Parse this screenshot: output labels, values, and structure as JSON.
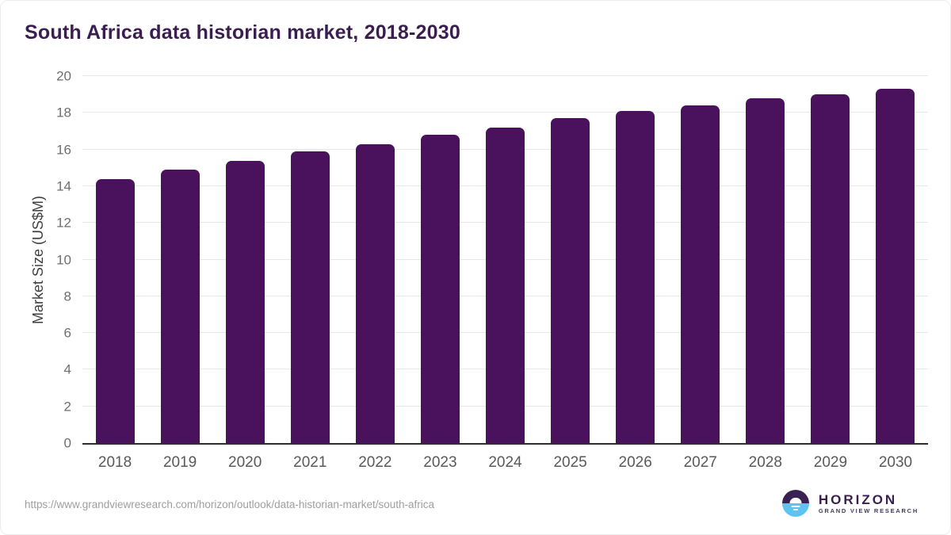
{
  "page": {
    "title": "South Africa data historian market, 2018-2030"
  },
  "chart_data": {
    "type": "bar",
    "title": "South Africa data historian market, 2018-2030",
    "categories": [
      "2018",
      "2019",
      "2020",
      "2021",
      "2022",
      "2023",
      "2024",
      "2025",
      "2026",
      "2027",
      "2028",
      "2029",
      "2030"
    ],
    "values": [
      14.4,
      14.9,
      15.4,
      15.9,
      16.3,
      16.8,
      17.2,
      17.7,
      18.1,
      18.4,
      18.8,
      19.0,
      19.3
    ],
    "xlabel": "",
    "ylabel": "Market Size (US$M)",
    "ylim": [
      0,
      20
    ],
    "ytick_step": 2,
    "grid": true,
    "legend": false,
    "bar_color": "#4a125c"
  },
  "footer": {
    "source_url": "https://www.grandviewresearch.com/horizon/outlook/data-historian-market/south-africa",
    "logo": {
      "name": "HORIZON",
      "subtitle": "GRAND VIEW RESEARCH"
    }
  },
  "colors": {
    "title": "#3a1e4f",
    "bar": "#4a125c",
    "gridline": "#e8e8e8",
    "axis_line": "#2e2e2e",
    "y_tick_label": "#6e6e6e",
    "x_tick_label": "#595959",
    "source_url": "#9e9e9e",
    "logo_blue": "#5ec3ef",
    "logo_purple": "#3a2153"
  }
}
